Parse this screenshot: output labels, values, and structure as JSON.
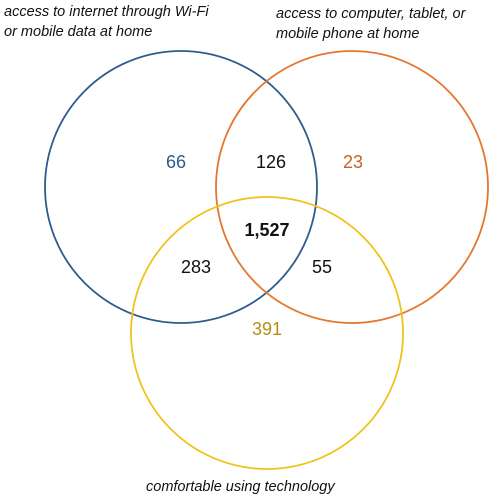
{
  "sets": {
    "a": {
      "label_lines": [
        "access to internet through Wi-Fi",
        "or mobile data at home"
      ],
      "color": "#2e5b8e"
    },
    "b": {
      "label_lines": [
        "access to computer, tablet, or",
        "mobile phone at home"
      ],
      "color": "#e3772f"
    },
    "c": {
      "label_lines": [
        "comfortable using technology"
      ],
      "color": "#f0c31a"
    }
  },
  "regions": {
    "a_only": "66",
    "b_only": "23",
    "c_only": "391",
    "a_b": "126",
    "a_c": "283",
    "b_c": "55",
    "a_b_c": "1,527"
  },
  "region_colors": {
    "a_only": "#2e5b8e",
    "b_only": "#c8612a",
    "c_only": "#b58f12",
    "shared": "#111111"
  }
}
